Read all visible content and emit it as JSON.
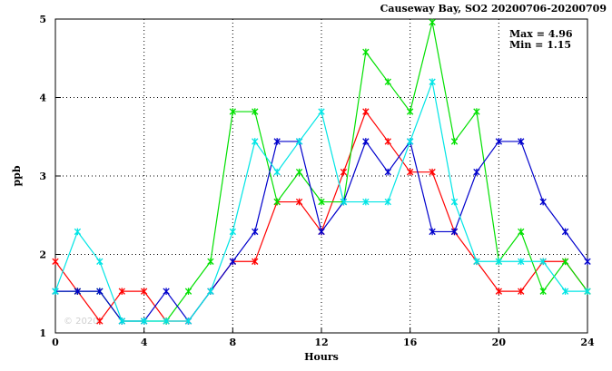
{
  "chart_data": {
    "type": "line",
    "title": "Causeway Bay, SO2 20200706-20200709",
    "xlabel": "Hours",
    "ylabel": "ppb",
    "xlim": [
      0,
      24
    ],
    "ylim": [
      1,
      5
    ],
    "x_ticks": [
      0,
      4,
      8,
      12,
      16,
      20,
      24
    ],
    "y_ticks": [
      1,
      2,
      3,
      4,
      5
    ],
    "grid": true,
    "annotations": {
      "max_label": "Max = 4.96",
      "min_label": "Min = 1.15"
    },
    "watermark": "© 2020",
    "x": [
      0,
      1,
      2,
      3,
      4,
      5,
      6,
      7,
      8,
      9,
      10,
      11,
      12,
      13,
      14,
      15,
      16,
      17,
      18,
      19,
      20,
      21,
      22,
      23,
      24
    ],
    "series": [
      {
        "color": "#ff0000",
        "values": [
          1.91,
          1.53,
          1.15,
          1.53,
          1.53,
          1.15,
          1.15,
          1.53,
          1.91,
          1.91,
          2.67,
          2.67,
          2.29,
          3.05,
          3.82,
          3.44,
          3.05,
          3.05,
          2.29,
          1.91,
          1.53,
          1.53,
          1.91,
          1.91,
          1.53
        ]
      },
      {
        "color": "#00e000",
        "values": [
          1.53,
          1.53,
          1.53,
          1.15,
          1.15,
          1.15,
          1.53,
          1.91,
          3.82,
          3.82,
          2.67,
          3.05,
          2.67,
          2.67,
          4.58,
          4.2,
          3.82,
          4.96,
          3.44,
          3.82,
          1.91,
          2.29,
          1.53,
          1.91,
          1.53
        ]
      },
      {
        "color": "#0000cc",
        "values": [
          1.53,
          1.53,
          1.53,
          1.15,
          1.15,
          1.53,
          1.15,
          1.53,
          1.91,
          2.29,
          3.44,
          3.44,
          2.29,
          2.67,
          3.44,
          3.05,
          3.44,
          2.29,
          2.29,
          3.05,
          3.44,
          3.44,
          2.67,
          2.29,
          1.91
        ]
      },
      {
        "color": "#00e5e5",
        "values": [
          1.53,
          2.29,
          1.91,
          1.15,
          1.15,
          1.15,
          1.15,
          1.53,
          2.29,
          3.44,
          3.05,
          3.44,
          3.82,
          2.67,
          2.67,
          2.67,
          3.44,
          4.2,
          2.67,
          1.91,
          1.91,
          1.91,
          1.91,
          1.53,
          1.53
        ]
      }
    ]
  }
}
